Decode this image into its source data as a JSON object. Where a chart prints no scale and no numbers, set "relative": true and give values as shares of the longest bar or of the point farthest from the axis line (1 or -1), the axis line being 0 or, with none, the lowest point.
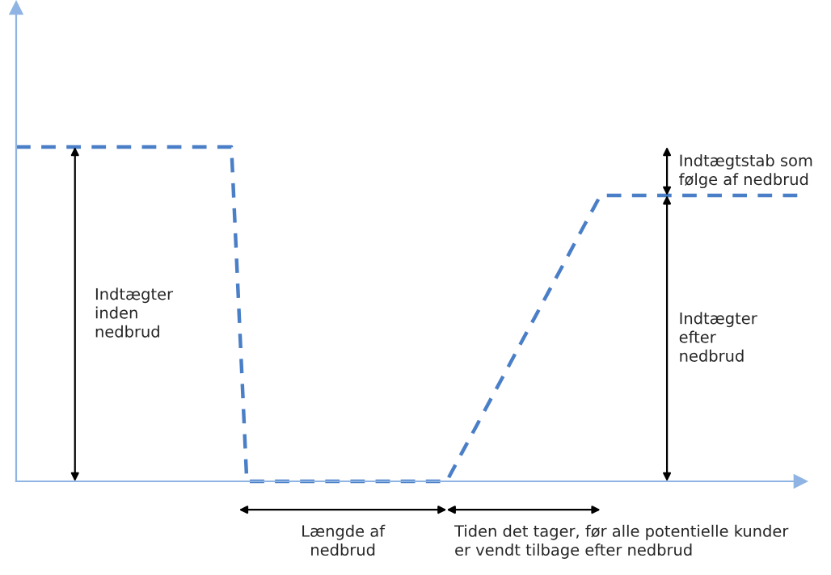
{
  "chart_data": {
    "type": "line",
    "relative": true,
    "categories": [
      null,
      null,
      null,
      null,
      null,
      null,
      null,
      null,
      null,
      null,
      null,
      null,
      null,
      null,
      null,
      null,
      null,
      null,
      null,
      null,
      null,
      null,
      null,
      null,
      null,
      null,
      null,
      null,
      null,
      null,
      null,
      null,
      null,
      null,
      null,
      null,
      null,
      null,
      null,
      null,
      null,
      null,
      null,
      null,
      null,
      null,
      null,
      null,
      null,
      null,
      null,
      null
    ],
    "series": [
      {
        "color": "#4a7fc7",
        "line_style": "dashed",
        "values": [
          1,
          1,
          1,
          1,
          1,
          1,
          1,
          1,
          1,
          1,
          1,
          1,
          1,
          1,
          1,
          0,
          0,
          0,
          0,
          0,
          0,
          0,
          0,
          0,
          0,
          0,
          0,
          0,
          0,
          0.086,
          0.171,
          0.257,
          0.342,
          0.428,
          0.513,
          0.599,
          0.684,
          0.77,
          0.855,
          0.855,
          0.855,
          0.855,
          0.855,
          0.855,
          0.855,
          0.855,
          0.855,
          0.855,
          0.855,
          0.855,
          0.855,
          0.855
        ]
      }
    ],
    "annotations": [
      "Indtægter\ninden\nnedbrud",
      "Indtægtstab som\nfølge af nedbrud",
      "Indtægter\nefter\nnedbrud",
      "Længde af\nnedbrud",
      "Tiden det tager, før alle potentielle kunder\ner vendt tilbage efter nedbrud"
    ]
  }
}
